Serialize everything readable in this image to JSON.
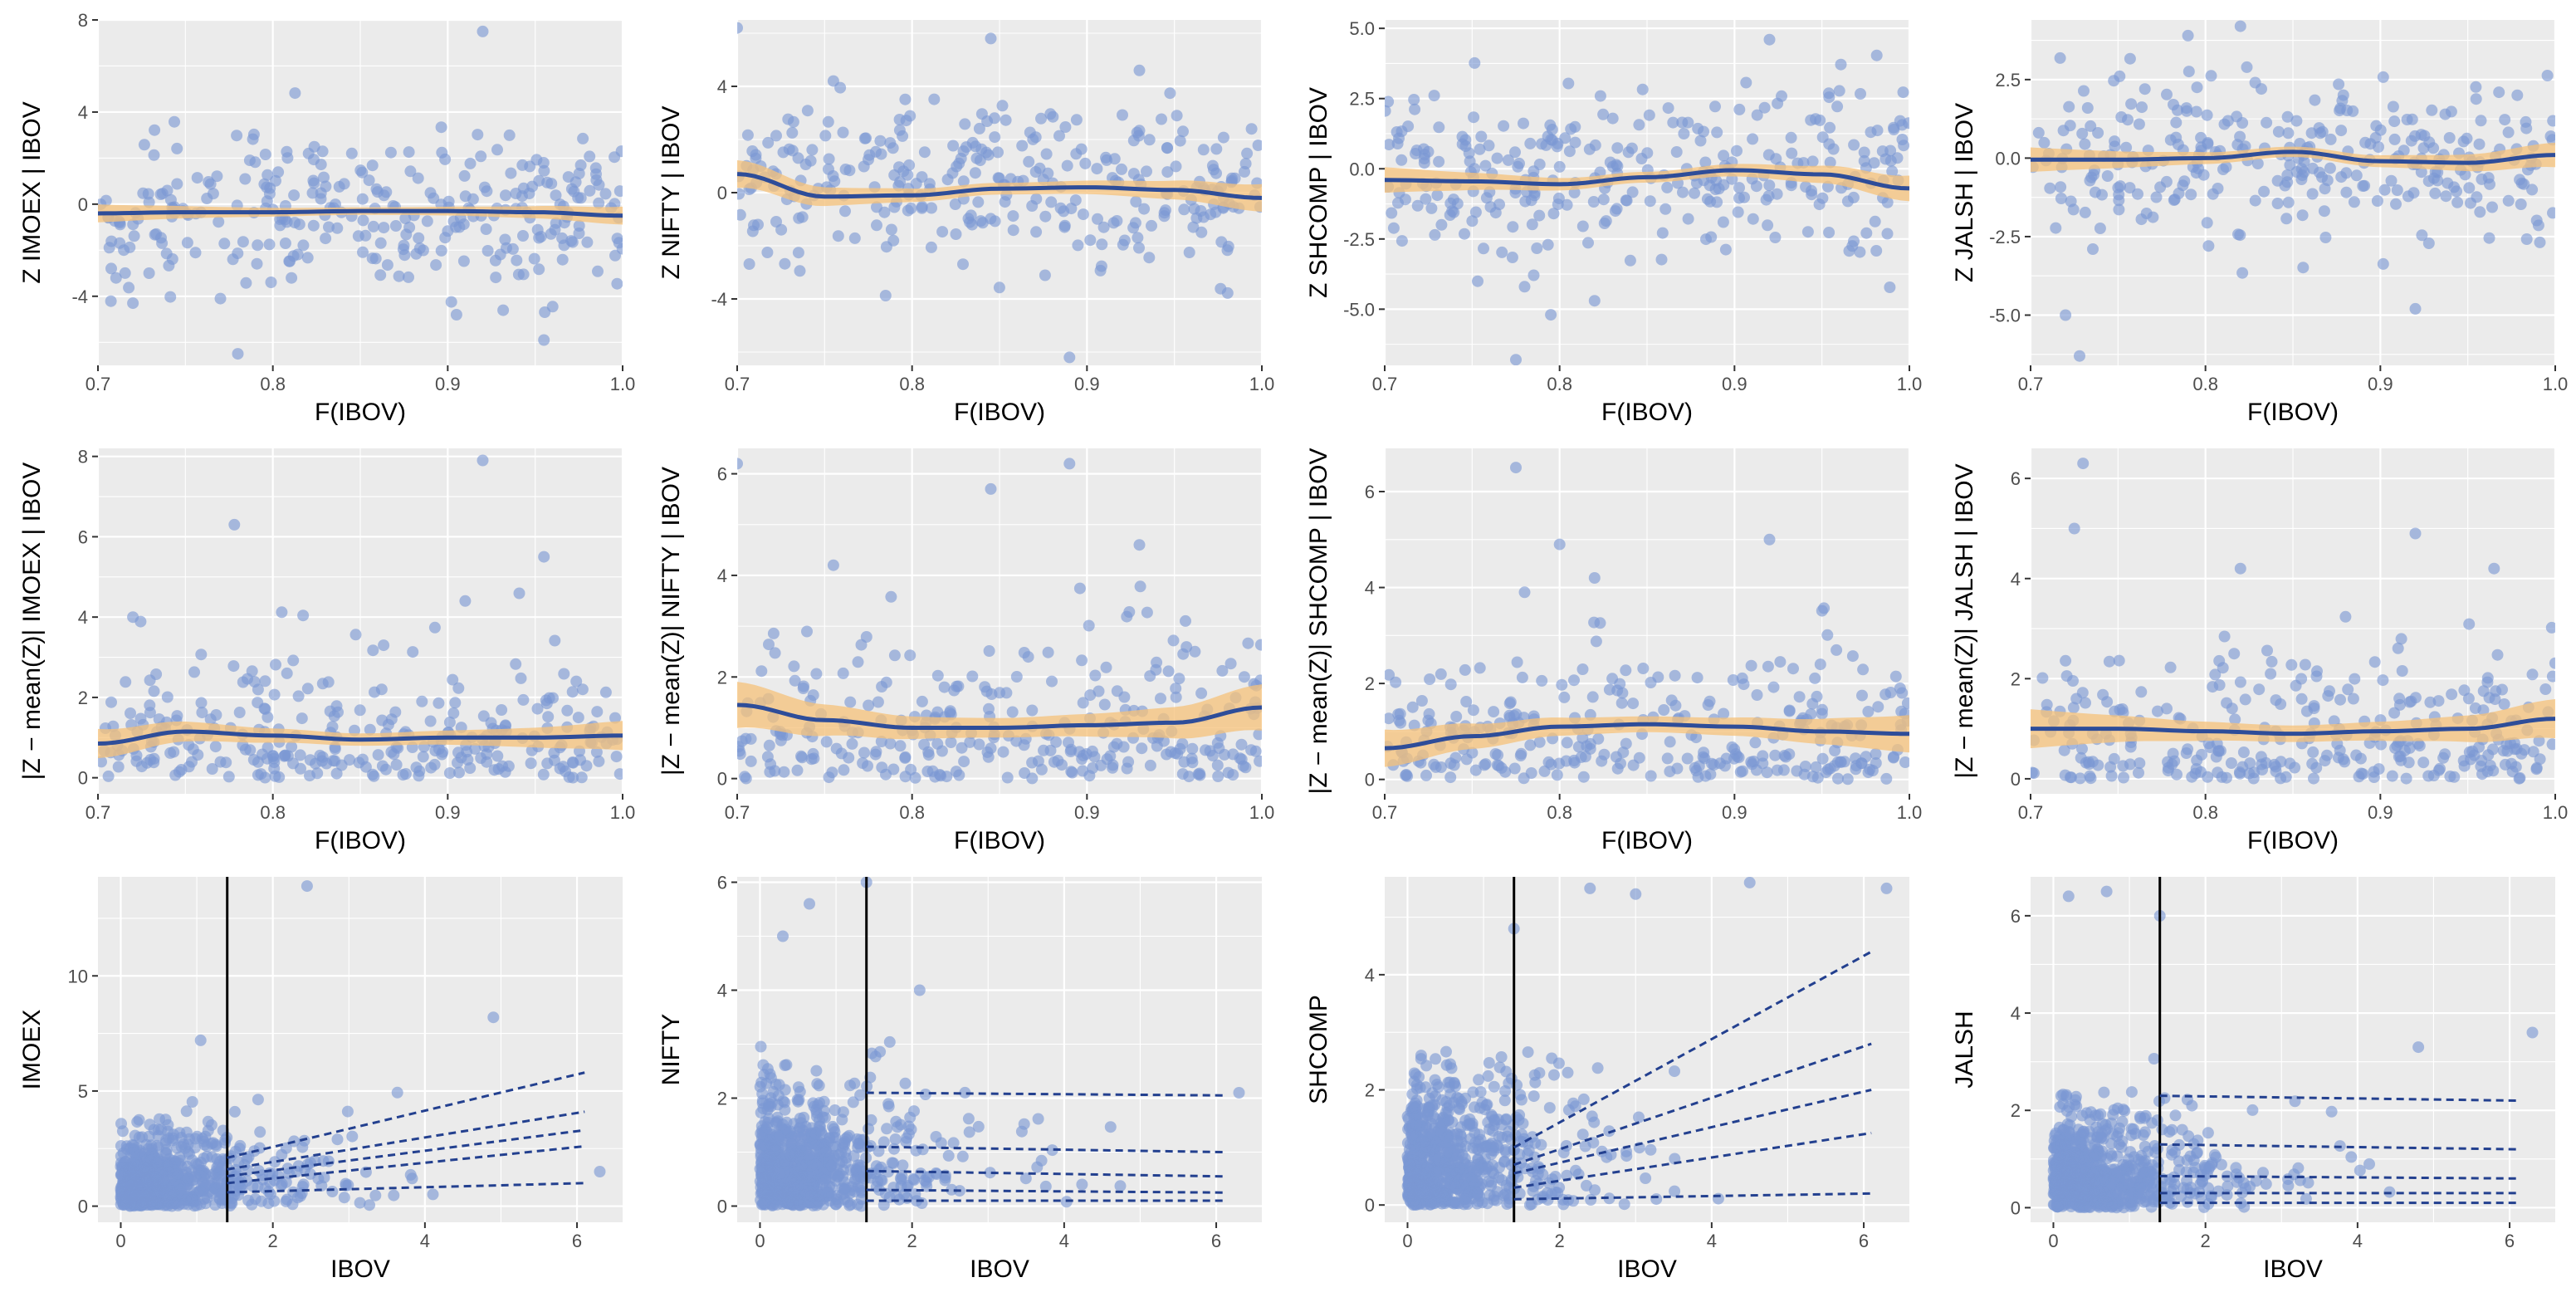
{
  "colors": {
    "panel_bg": "#EBEBEB",
    "point": "#7B98D4",
    "smooth_line": "#2E4D99",
    "ribbon": "#F5C27A",
    "quantile_line": "#23408F",
    "threshold_line": "#000000"
  },
  "chart_data": [
    {
      "id": "r1c1",
      "type": "scatter",
      "row": 1,
      "col": 1,
      "xlabel": "F(IBOV)",
      "ylabel": "Z  IMOEX | IBOV",
      "xlim": [
        0.7,
        1.0
      ],
      "ylim": [
        -7,
        8
      ],
      "xticks": [
        0.7,
        0.8,
        0.9,
        1.0
      ],
      "xtick_labels": [
        "0.7",
        "0.8",
        "0.9",
        "1.0"
      ],
      "yticks": [
        -4,
        0,
        4,
        8
      ],
      "ytick_labels": [
        "-4",
        "0",
        "4",
        "8"
      ],
      "n_points": 300,
      "scatter_x": "uniform",
      "scatter_y": "normal",
      "y_mean": -0.3,
      "y_sd": 1.7,
      "smooth": {
        "x": [
          0.7,
          0.75,
          0.8,
          0.85,
          0.9,
          0.95,
          1.0
        ],
        "y": [
          -0.4,
          -0.35,
          -0.35,
          -0.3,
          -0.3,
          -0.35,
          -0.5
        ],
        "band": 0.3
      },
      "outliers": [
        [
          0.92,
          7.5
        ],
        [
          0.78,
          -6.5
        ],
        [
          0.955,
          -5.9
        ],
        [
          0.905,
          -4.8
        ],
        [
          0.72,
          -4.3
        ],
        [
          0.77,
          -4.1
        ]
      ]
    },
    {
      "id": "r1c2",
      "type": "scatter",
      "row": 1,
      "col": 2,
      "xlabel": "F(IBOV)",
      "ylabel": "Z  NIFTY | IBOV",
      "xlim": [
        0.7,
        1.0
      ],
      "ylim": [
        -6.5,
        6.5
      ],
      "xticks": [
        0.7,
        0.8,
        0.9,
        1.0
      ],
      "xtick_labels": [
        "0.7",
        "0.8",
        "0.9",
        "1.0"
      ],
      "yticks": [
        -4,
        0,
        4
      ],
      "ytick_labels": [
        "-4",
        "0",
        "4"
      ],
      "n_points": 300,
      "scatter_x": "uniform",
      "scatter_y": "normal",
      "y_mean": 0.1,
      "y_sd": 1.5,
      "smooth": {
        "x": [
          0.7,
          0.75,
          0.8,
          0.85,
          0.9,
          0.95,
          1.0
        ],
        "y": [
          0.7,
          -0.15,
          -0.1,
          0.15,
          0.2,
          0.1,
          -0.2
        ],
        "band": 0.4
      },
      "outliers": [
        [
          0.7,
          6.2
        ],
        [
          0.845,
          5.8
        ],
        [
          0.89,
          -6.2
        ],
        [
          0.755,
          4.2
        ],
        [
          0.93,
          4.6
        ]
      ]
    },
    {
      "id": "r1c3",
      "type": "scatter",
      "row": 1,
      "col": 3,
      "xlabel": "F(IBOV)",
      "ylabel": "Z  SHCOMP | IBOV",
      "xlim": [
        0.7,
        1.0
      ],
      "ylim": [
        -7,
        5.3
      ],
      "xticks": [
        0.7,
        0.8,
        0.9,
        1.0
      ],
      "xtick_labels": [
        "0.7",
        "0.8",
        "0.9",
        "1.0"
      ],
      "yticks": [
        -5,
        -2.5,
        0,
        2.5,
        5
      ],
      "ytick_labels": [
        "-5.0",
        "-2.5",
        "0.0",
        "2.5",
        "5.0"
      ],
      "n_points": 300,
      "scatter_x": "uniform",
      "scatter_y": "normal",
      "y_mean": -0.3,
      "y_sd": 1.6,
      "smooth": {
        "x": [
          0.7,
          0.75,
          0.8,
          0.85,
          0.9,
          0.95,
          1.0
        ],
        "y": [
          -0.4,
          -0.45,
          -0.55,
          -0.3,
          -0.05,
          -0.2,
          -0.7
        ],
        "band": 0.35
      },
      "outliers": [
        [
          0.92,
          4.6
        ],
        [
          0.775,
          -6.8
        ],
        [
          0.795,
          -5.2
        ],
        [
          0.82,
          -4.7
        ],
        [
          0.78,
          -4.2
        ]
      ]
    },
    {
      "id": "r1c4",
      "type": "scatter",
      "row": 1,
      "col": 4,
      "xlabel": "F(IBOV)",
      "ylabel": "Z  JALSH | IBOV",
      "xlim": [
        0.7,
        1.0
      ],
      "ylim": [
        -6.6,
        4.4
      ],
      "xticks": [
        0.7,
        0.8,
        0.9,
        1.0
      ],
      "xtick_labels": [
        "0.7",
        "0.8",
        "0.9",
        "1.0"
      ],
      "yticks": [
        -5,
        -2.5,
        0,
        2.5
      ],
      "ytick_labels": [
        "-5.0",
        "-2.5",
        "0.0",
        "2.5"
      ],
      "n_points": 300,
      "scatter_x": "uniform",
      "scatter_y": "normal",
      "y_mean": 0.05,
      "y_sd": 1.3,
      "smooth": {
        "x": [
          0.7,
          0.75,
          0.8,
          0.85,
          0.9,
          0.95,
          1.0
        ],
        "y": [
          -0.05,
          -0.05,
          0.0,
          0.2,
          -0.1,
          -0.15,
          0.1
        ],
        "band": 0.3
      },
      "outliers": [
        [
          0.728,
          -6.3
        ],
        [
          0.82,
          4.2
        ],
        [
          0.79,
          3.9
        ],
        [
          0.92,
          -4.8
        ],
        [
          0.72,
          -5.0
        ]
      ]
    },
    {
      "id": "r2c1",
      "type": "scatter",
      "row": 2,
      "col": 1,
      "xlabel": "F(IBOV)",
      "ylabel": "|Z − mean(Z)|   IMOEX | IBOV",
      "xlim": [
        0.7,
        1.0
      ],
      "ylim": [
        -0.4,
        8.2
      ],
      "xticks": [
        0.7,
        0.8,
        0.9,
        1.0
      ],
      "xtick_labels": [
        "0.7",
        "0.8",
        "0.9",
        "1.0"
      ],
      "yticks": [
        0,
        2,
        4,
        6,
        8
      ],
      "ytick_labels": [
        "0",
        "2",
        "4",
        "6",
        "8"
      ],
      "n_points": 300,
      "scatter_x": "uniform",
      "scatter_y": "halfnormal",
      "y_sd": 1.35,
      "smooth": {
        "x": [
          0.7,
          0.75,
          0.8,
          0.85,
          0.9,
          0.95,
          1.0
        ],
        "y": [
          0.85,
          1.15,
          1.05,
          0.95,
          1.0,
          1.0,
          1.05
        ],
        "band": 0.28
      },
      "outliers": [
        [
          0.92,
          7.9
        ],
        [
          0.778,
          6.3
        ],
        [
          0.955,
          5.5
        ],
        [
          0.91,
          4.4
        ],
        [
          0.72,
          4.0
        ]
      ]
    },
    {
      "id": "r2c2",
      "type": "scatter",
      "row": 2,
      "col": 2,
      "xlabel": "F(IBOV)",
      "ylabel": "|Z − mean(Z)|   NIFTY | IBOV",
      "xlim": [
        0.7,
        1.0
      ],
      "ylim": [
        -0.3,
        6.5
      ],
      "xticks": [
        0.7,
        0.8,
        0.9,
        1.0
      ],
      "xtick_labels": [
        "0.7",
        "0.8",
        "0.9",
        "1.0"
      ],
      "yticks": [
        0,
        2,
        4,
        6
      ],
      "ytick_labels": [
        "0",
        "2",
        "4",
        "6"
      ],
      "n_points": 300,
      "scatter_x": "uniform",
      "scatter_y": "halfnormal",
      "y_sd": 1.3,
      "smooth": {
        "x": [
          0.7,
          0.75,
          0.8,
          0.85,
          0.9,
          0.95,
          1.0
        ],
        "y": [
          1.45,
          1.15,
          1.0,
          1.0,
          1.05,
          1.1,
          1.4
        ],
        "band": 0.35
      },
      "outliers": [
        [
          0.7,
          6.2
        ],
        [
          0.89,
          6.2
        ],
        [
          0.845,
          5.7
        ],
        [
          0.93,
          4.6
        ],
        [
          0.755,
          4.2
        ]
      ]
    },
    {
      "id": "r2c3",
      "type": "scatter",
      "row": 2,
      "col": 3,
      "xlabel": "F(IBOV)",
      "ylabel": "|Z − mean(Z)|   SHCOMP | IBOV",
      "xlim": [
        0.7,
        1.0
      ],
      "ylim": [
        -0.3,
        6.9
      ],
      "xticks": [
        0.7,
        0.8,
        0.9,
        1.0
      ],
      "xtick_labels": [
        "0.7",
        "0.8",
        "0.9",
        "1.0"
      ],
      "yticks": [
        0,
        2,
        4,
        6
      ],
      "ytick_labels": [
        "0",
        "2",
        "4",
        "6"
      ],
      "n_points": 300,
      "scatter_x": "uniform",
      "scatter_y": "halfnormal",
      "y_sd": 1.25,
      "smooth": {
        "x": [
          0.7,
          0.75,
          0.8,
          0.85,
          0.9,
          0.95,
          1.0
        ],
        "y": [
          0.65,
          0.9,
          1.1,
          1.15,
          1.1,
          1.0,
          0.95
        ],
        "band": 0.3
      },
      "outliers": [
        [
          0.775,
          6.5
        ],
        [
          0.8,
          4.9
        ],
        [
          0.92,
          5.0
        ],
        [
          0.82,
          4.2
        ],
        [
          0.78,
          3.9
        ]
      ]
    },
    {
      "id": "r2c4",
      "type": "scatter",
      "row": 2,
      "col": 4,
      "xlabel": "F(IBOV)",
      "ylabel": "|Z − mean(Z)|   JALSH | IBOV",
      "xlim": [
        0.7,
        1.0
      ],
      "ylim": [
        -0.3,
        6.6
      ],
      "xticks": [
        0.7,
        0.8,
        0.9,
        1.0
      ],
      "xtick_labels": [
        "0.7",
        "0.8",
        "0.9",
        "1.0"
      ],
      "yticks": [
        0,
        2,
        4,
        6
      ],
      "ytick_labels": [
        "0",
        "2",
        "4",
        "6"
      ],
      "n_points": 300,
      "scatter_x": "uniform",
      "scatter_y": "halfnormal",
      "y_sd": 1.15,
      "smooth": {
        "x": [
          0.7,
          0.75,
          0.8,
          0.85,
          0.9,
          0.95,
          1.0
        ],
        "y": [
          1.0,
          1.0,
          0.95,
          0.9,
          0.95,
          1.0,
          1.2
        ],
        "band": 0.3
      },
      "outliers": [
        [
          0.73,
          6.3
        ],
        [
          0.725,
          5.0
        ],
        [
          0.92,
          4.9
        ],
        [
          0.82,
          4.2
        ],
        [
          0.965,
          4.2
        ]
      ]
    },
    {
      "id": "r3c1",
      "type": "scatter",
      "row": 3,
      "col": 1,
      "xlabel": "IBOV",
      "ylabel": "IMOEX",
      "xlim": [
        -0.3,
        6.6
      ],
      "ylim": [
        -0.7,
        14.3
      ],
      "xticks": [
        0,
        2,
        4,
        6
      ],
      "xtick_labels": [
        "0",
        "2",
        "4",
        "6"
      ],
      "yticks": [
        0,
        5,
        10
      ],
      "ytick_labels": [
        "0",
        "5",
        "10"
      ],
      "n_points": 800,
      "scatter_x": "exponential",
      "x_rate": 1.4,
      "scatter_y": "halfnormal_grow",
      "y_sd": 1.3,
      "threshold_x": 1.4,
      "quantile_lines": [
        {
          "x": [
            1.4,
            6.1
          ],
          "y": [
            0.6,
            1.0
          ]
        },
        {
          "x": [
            1.4,
            6.1
          ],
          "y": [
            1.0,
            2.6
          ]
        },
        {
          "x": [
            1.4,
            6.1
          ],
          "y": [
            1.3,
            3.3
          ]
        },
        {
          "x": [
            1.4,
            6.1
          ],
          "y": [
            1.6,
            4.1
          ]
        },
        {
          "x": [
            1.4,
            6.1
          ],
          "y": [
            2.1,
            5.8
          ]
        }
      ],
      "outliers": [
        [
          2.45,
          13.9
        ],
        [
          4.9,
          8.2
        ],
        [
          6.3,
          1.5
        ],
        [
          1.05,
          7.2
        ],
        [
          1.5,
          4.1
        ]
      ]
    },
    {
      "id": "r3c2",
      "type": "scatter",
      "row": 3,
      "col": 2,
      "xlabel": "IBOV",
      "ylabel": "NIFTY",
      "xlim": [
        -0.3,
        6.6
      ],
      "ylim": [
        -0.3,
        6.1
      ],
      "xticks": [
        0,
        2,
        4,
        6
      ],
      "xtick_labels": [
        "0",
        "2",
        "4",
        "6"
      ],
      "yticks": [
        0,
        2,
        4,
        6
      ],
      "ytick_labels": [
        "0",
        "2",
        "4",
        "6"
      ],
      "n_points": 800,
      "scatter_x": "exponential",
      "x_rate": 1.4,
      "scatter_y": "halfnormal",
      "y_sd": 0.95,
      "threshold_x": 1.4,
      "quantile_lines": [
        {
          "x": [
            1.4,
            6.1
          ],
          "y": [
            0.1,
            0.1
          ]
        },
        {
          "x": [
            1.4,
            6.1
          ],
          "y": [
            0.3,
            0.25
          ]
        },
        {
          "x": [
            1.4,
            6.1
          ],
          "y": [
            0.65,
            0.55
          ]
        },
        {
          "x": [
            1.4,
            6.1
          ],
          "y": [
            1.1,
            1.0
          ]
        },
        {
          "x": [
            1.4,
            6.1
          ],
          "y": [
            2.1,
            2.05
          ]
        }
      ],
      "outliers": [
        [
          1.4,
          6.0
        ],
        [
          0.65,
          5.6
        ],
        [
          0.3,
          5.0
        ],
        [
          2.1,
          4.0
        ],
        [
          6.3,
          2.1
        ]
      ]
    },
    {
      "id": "r3c3",
      "type": "scatter",
      "row": 3,
      "col": 3,
      "xlabel": "IBOV",
      "ylabel": "SHCOMP",
      "xlim": [
        -0.3,
        6.6
      ],
      "ylim": [
        -0.3,
        5.7
      ],
      "xticks": [
        0,
        2,
        4,
        6
      ],
      "xtick_labels": [
        "0",
        "2",
        "4",
        "6"
      ],
      "yticks": [
        0,
        2,
        4
      ],
      "ytick_labels": [
        "0",
        "2",
        "4"
      ],
      "n_points": 800,
      "scatter_x": "exponential",
      "x_rate": 1.4,
      "scatter_y": "halfnormal_grow",
      "y_sd": 0.95,
      "threshold_x": 1.4,
      "quantile_lines": [
        {
          "x": [
            1.4,
            6.1
          ],
          "y": [
            0.1,
            0.2
          ]
        },
        {
          "x": [
            1.4,
            6.1
          ],
          "y": [
            0.3,
            1.25
          ]
        },
        {
          "x": [
            1.4,
            6.1
          ],
          "y": [
            0.55,
            2.0
          ]
        },
        {
          "x": [
            1.4,
            6.1
          ],
          "y": [
            0.7,
            2.8
          ]
        },
        {
          "x": [
            1.4,
            6.1
          ],
          "y": [
            1.0,
            4.4
          ]
        }
      ],
      "outliers": [
        [
          4.5,
          5.6
        ],
        [
          6.3,
          5.5
        ],
        [
          3.0,
          5.4
        ],
        [
          2.4,
          5.5
        ],
        [
          1.4,
          4.8
        ]
      ]
    },
    {
      "id": "r3c4",
      "type": "scatter",
      "row": 3,
      "col": 4,
      "xlabel": "IBOV",
      "ylabel": "JALSH",
      "xlim": [
        -0.3,
        6.6
      ],
      "ylim": [
        -0.3,
        6.8
      ],
      "xticks": [
        0,
        2,
        4,
        6
      ],
      "xtick_labels": [
        "0",
        "2",
        "4",
        "6"
      ],
      "yticks": [
        0,
        2,
        4,
        6
      ],
      "ytick_labels": [
        "0",
        "2",
        "4",
        "6"
      ],
      "n_points": 800,
      "scatter_x": "exponential",
      "x_rate": 1.4,
      "scatter_y": "halfnormal",
      "y_sd": 0.95,
      "threshold_x": 1.4,
      "quantile_lines": [
        {
          "x": [
            1.4,
            6.1
          ],
          "y": [
            0.1,
            0.1
          ]
        },
        {
          "x": [
            1.4,
            6.1
          ],
          "y": [
            0.3,
            0.3
          ]
        },
        {
          "x": [
            1.4,
            6.1
          ],
          "y": [
            0.65,
            0.6
          ]
        },
        {
          "x": [
            1.4,
            6.1
          ],
          "y": [
            1.3,
            1.2
          ]
        },
        {
          "x": [
            1.4,
            6.1
          ],
          "y": [
            2.3,
            2.2
          ]
        }
      ],
      "outliers": [
        [
          0.7,
          6.5
        ],
        [
          1.4,
          6.0
        ],
        [
          0.2,
          6.4
        ],
        [
          4.8,
          3.3
        ],
        [
          6.3,
          3.6
        ]
      ]
    }
  ]
}
